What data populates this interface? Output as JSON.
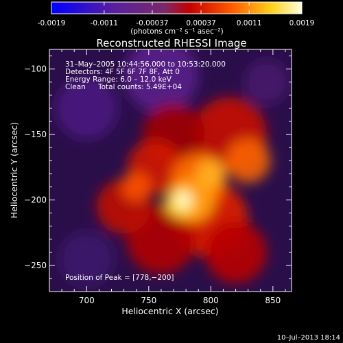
{
  "colorbar": {
    "tick_labels": [
      "-0.0019",
      "-0.0011",
      "-0.00037",
      "0.00037",
      "0.0011",
      "0.0019"
    ],
    "tick_values": [
      -0.0019,
      -0.0011,
      -0.00037,
      0.00037,
      0.0011,
      0.0019
    ],
    "range": [
      -0.0019,
      0.0019
    ],
    "unit_label": "(photons cm⁻² s⁻¹ asec⁻²)"
  },
  "chart_data": {
    "type": "heatmap",
    "title": "Reconstructed RHESSI Image",
    "xlabel": "Heliocentric X (arcsec)",
    "ylabel": "Heliocentric Y (arcsec)",
    "xlim": [
      670,
      865
    ],
    "ylim": [
      -270,
      -85
    ],
    "x_ticks": [
      700,
      750,
      800,
      850
    ],
    "y_ticks": [
      -100,
      -150,
      -200,
      -250
    ],
    "x_tick_labels": [
      "700",
      "750",
      "800",
      "850"
    ],
    "y_tick_labels": [
      "−100",
      "−150",
      "−200",
      "−250"
    ],
    "peak": {
      "x": 778,
      "y": -200
    },
    "colormap": "violet-red-orange-yellow-white",
    "annotations": {
      "time_range": "31–May–2005 10:44:56.000 to 10:53:20.000",
      "detectors": "Detectors: 4F 5F 6F 7F 8F, Att 0",
      "energy": "Energy Range: 6.0 – 12.0 keV",
      "method": "Clean",
      "counts": "Total counts: 5.49E+04",
      "peak_text": "Position of Peak = [778,−200]"
    }
  },
  "footer_date": "10–Jul–2013 18:14"
}
